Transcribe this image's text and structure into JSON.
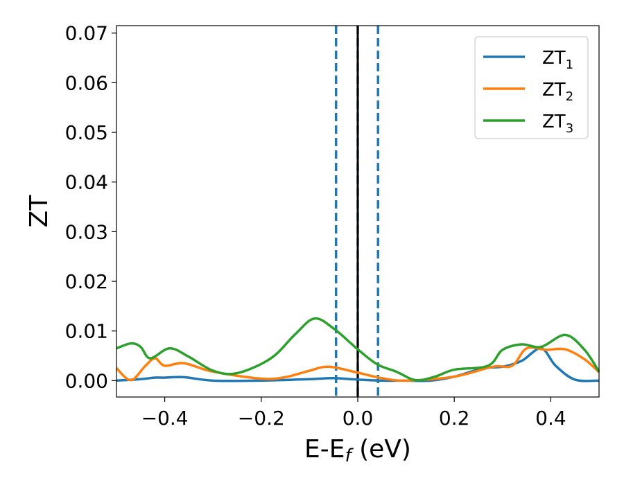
{
  "chart_data": {
    "type": "line",
    "xlabel": "E-E",
    "xlabel_sub": "f",
    "xlabel_unit": " (eV)",
    "ylabel": "ZT",
    "xlim": [
      -0.5,
      0.5
    ],
    "ylim": [
      -0.0033,
      0.0715
    ],
    "grid": false,
    "legend_position": "top-right",
    "x_ticks": [
      -0.4,
      -0.2,
      0.0,
      0.2,
      0.4
    ],
    "x_tick_labels": [
      "−0.4",
      "−0.2",
      "0.0",
      "0.2",
      "0.4"
    ],
    "y_ticks": [
      0.0,
      0.01,
      0.02,
      0.03,
      0.04,
      0.05,
      0.06,
      0.07
    ],
    "y_tick_labels": [
      "0.00",
      "0.01",
      "0.02",
      "0.03",
      "0.04",
      "0.05",
      "0.06",
      "0.07"
    ],
    "vlines": [
      {
        "x": -0.045,
        "style": "dashed",
        "color": "#1f77b4"
      },
      {
        "x": 0.0,
        "style": "dashed",
        "color": "#1f77b4"
      },
      {
        "x": 0.042,
        "style": "dashed",
        "color": "#1f77b4"
      },
      {
        "x": 0.0,
        "style": "solid",
        "color": "#000000"
      }
    ],
    "series": [
      {
        "name": "ZT",
        "sub": "1",
        "color": "#1f77b4",
        "x": [
          -0.5,
          -0.45,
          -0.42,
          -0.4,
          -0.36,
          -0.3,
          -0.2,
          -0.1,
          -0.05,
          0.0,
          0.05,
          0.1,
          0.15,
          0.2,
          0.26,
          0.3,
          0.34,
          0.38,
          0.41,
          0.45,
          0.5
        ],
        "y": [
          0.0,
          0.0003,
          0.0006,
          0.0006,
          0.0007,
          0.0,
          0.0,
          0.0003,
          0.0005,
          0.0002,
          0.0,
          0.0,
          0.0,
          0.0008,
          0.0025,
          0.0028,
          0.004,
          0.0065,
          0.003,
          0.0002,
          0.0
        ]
      },
      {
        "name": "ZT",
        "sub": "2",
        "color": "#ff7f0e",
        "x": [
          -0.5,
          -0.47,
          -0.44,
          -0.42,
          -0.4,
          -0.36,
          -0.3,
          -0.2,
          -0.15,
          -0.1,
          -0.06,
          0.0,
          0.05,
          0.1,
          0.2,
          0.28,
          0.32,
          0.35,
          0.39,
          0.43,
          0.47,
          0.5
        ],
        "y": [
          0.0025,
          0.0001,
          0.003,
          0.0045,
          0.003,
          0.0035,
          0.0018,
          0.0004,
          0.0007,
          0.002,
          0.0028,
          0.0016,
          0.0005,
          0.0,
          0.0008,
          0.0028,
          0.003,
          0.0065,
          0.0062,
          0.0063,
          0.0043,
          0.0017
        ]
      },
      {
        "name": "ZT",
        "sub": "3",
        "color": "#2ca02c",
        "x": [
          -0.5,
          -0.47,
          -0.45,
          -0.43,
          -0.39,
          -0.35,
          -0.3,
          -0.25,
          -0.18,
          -0.13,
          -0.09,
          -0.05,
          0.0,
          0.04,
          0.08,
          0.12,
          0.16,
          0.2,
          0.27,
          0.3,
          0.34,
          0.38,
          0.43,
          0.47,
          0.5
        ],
        "y": [
          0.0065,
          0.0075,
          0.0068,
          0.0045,
          0.0065,
          0.0048,
          0.002,
          0.0015,
          0.0045,
          0.0093,
          0.0125,
          0.0105,
          0.0063,
          0.0033,
          0.0018,
          0.0001,
          0.0008,
          0.0022,
          0.003,
          0.0062,
          0.0073,
          0.0068,
          0.0092,
          0.0062,
          0.0018
        ]
      }
    ]
  }
}
